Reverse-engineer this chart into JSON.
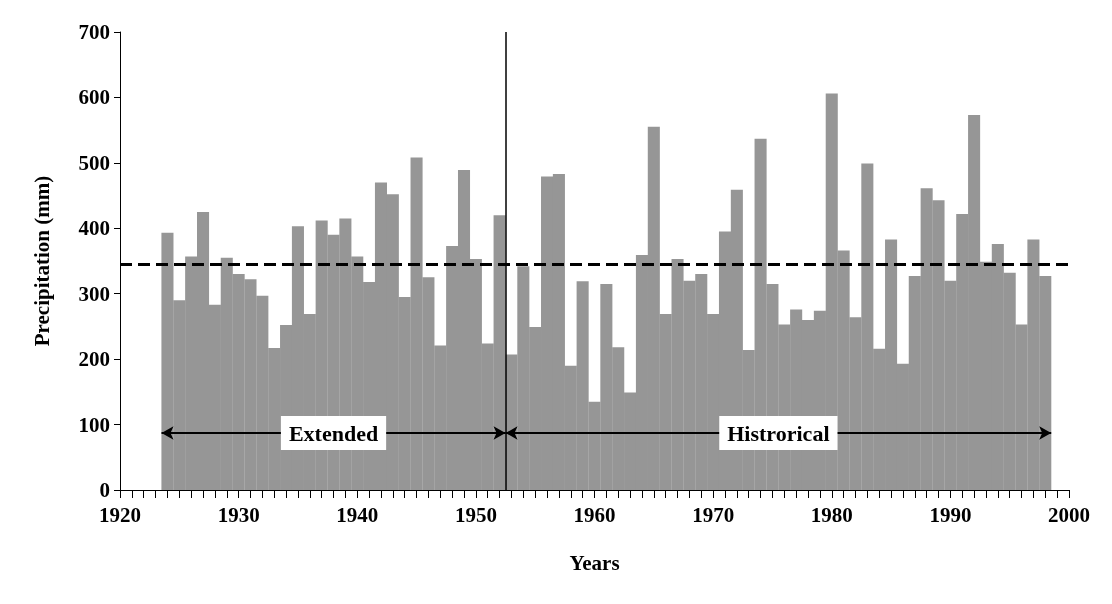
{
  "chart_data": {
    "type": "bar",
    "xlabel": "Years",
    "ylabel": "Precipitation (mm)",
    "x": [
      1924,
      1925,
      1926,
      1927,
      1928,
      1929,
      1930,
      1931,
      1932,
      1933,
      1934,
      1935,
      1936,
      1937,
      1938,
      1939,
      1940,
      1941,
      1942,
      1943,
      1944,
      1945,
      1946,
      1947,
      1948,
      1949,
      1950,
      1951,
      1952,
      1953,
      1954,
      1955,
      1956,
      1957,
      1958,
      1959,
      1960,
      1961,
      1962,
      1963,
      1964,
      1965,
      1966,
      1967,
      1968,
      1969,
      1970,
      1971,
      1972,
      1973,
      1974,
      1975,
      1976,
      1977,
      1978,
      1979,
      1980,
      1981,
      1982,
      1983,
      1984,
      1985,
      1986,
      1987,
      1988,
      1989,
      1990,
      1991,
      1992,
      1993,
      1994,
      1995,
      1996,
      1997,
      1998
    ],
    "values": [
      393,
      290,
      357,
      425,
      283,
      355,
      330,
      322,
      297,
      217,
      252,
      403,
      269,
      412,
      390,
      415,
      357,
      318,
      470,
      452,
      295,
      508,
      325,
      221,
      373,
      489,
      353,
      224,
      420,
      207,
      342,
      249,
      479,
      483,
      190,
      319,
      135,
      315,
      218,
      149,
      359,
      555,
      269,
      353,
      320,
      330,
      269,
      395,
      459,
      214,
      537,
      315,
      253,
      276,
      260,
      274,
      606,
      366,
      264,
      499,
      216,
      383,
      193,
      327,
      461,
      443,
      320,
      422,
      573,
      349,
      376,
      332,
      253,
      383,
      327
    ],
    "color": "#969696",
    "xlim": [
      1920,
      2000
    ],
    "xticks": [
      1920,
      1930,
      1940,
      1950,
      1960,
      1970,
      1980,
      1990,
      2000
    ],
    "ylim": [
      0,
      700
    ],
    "yticks": [
      0,
      100,
      200,
      300,
      400,
      500,
      600,
      700
    ],
    "ref_lines": [
      {
        "axis": "y",
        "value": 345,
        "color": "#000000",
        "line_style": "dashed"
      },
      {
        "axis": "x",
        "value": 1952.5,
        "color": "#000000",
        "line_style": "solid"
      }
    ],
    "annotations": [
      "Extended",
      "Histrorical"
    ],
    "grid": false
  }
}
